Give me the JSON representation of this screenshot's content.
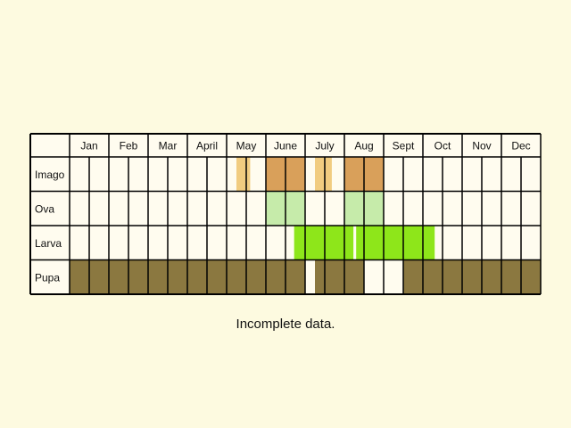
{
  "chart_data": {
    "type": "table",
    "months": [
      "Jan",
      "Feb",
      "Mar",
      "Apr",
      "May",
      "Jun",
      "Jul",
      "Aug",
      "Sep",
      "Oct",
      "Nov",
      "Dec"
    ],
    "month_labels": [
      "Jan",
      "Feb",
      "Mar",
      "April",
      "May",
      "June",
      "July",
      "Aug",
      "Sept",
      "Oct",
      "Nov",
      "Dec"
    ],
    "subdivisions_per_month": 2,
    "rows": [
      {
        "label": "Imago",
        "color": "#d9a05a",
        "light_color": "#f1cc80",
        "spans": [
          {
            "start": 4.25,
            "end": 4.6,
            "shade": "light"
          },
          {
            "start": 5.0,
            "end": 6.0,
            "shade": "dark"
          },
          {
            "start": 6.25,
            "end": 6.68,
            "shade": "light"
          },
          {
            "start": 7.0,
            "end": 8.0,
            "shade": "dark"
          }
        ]
      },
      {
        "label": "Ova",
        "color": "#c6ebaa",
        "spans": [
          {
            "start": 5.0,
            "end": 6.0
          },
          {
            "start": 7.0,
            "end": 8.0
          }
        ]
      },
      {
        "label": "Larva",
        "color": "#8ee61a",
        "spans": [
          {
            "start": 5.72,
            "end": 7.23
          },
          {
            "start": 7.3,
            "end": 9.3
          }
        ]
      },
      {
        "label": "Pupa",
        "color": "#8b7840",
        "spans": [
          {
            "start": 0.0,
            "end": 6.0
          },
          {
            "start": 6.25,
            "end": 7.5
          },
          {
            "start": 8.5,
            "end": 12.0
          }
        ]
      }
    ],
    "background": "#fffcef",
    "grid_color": "#000000"
  },
  "caption": "Incomplete data."
}
